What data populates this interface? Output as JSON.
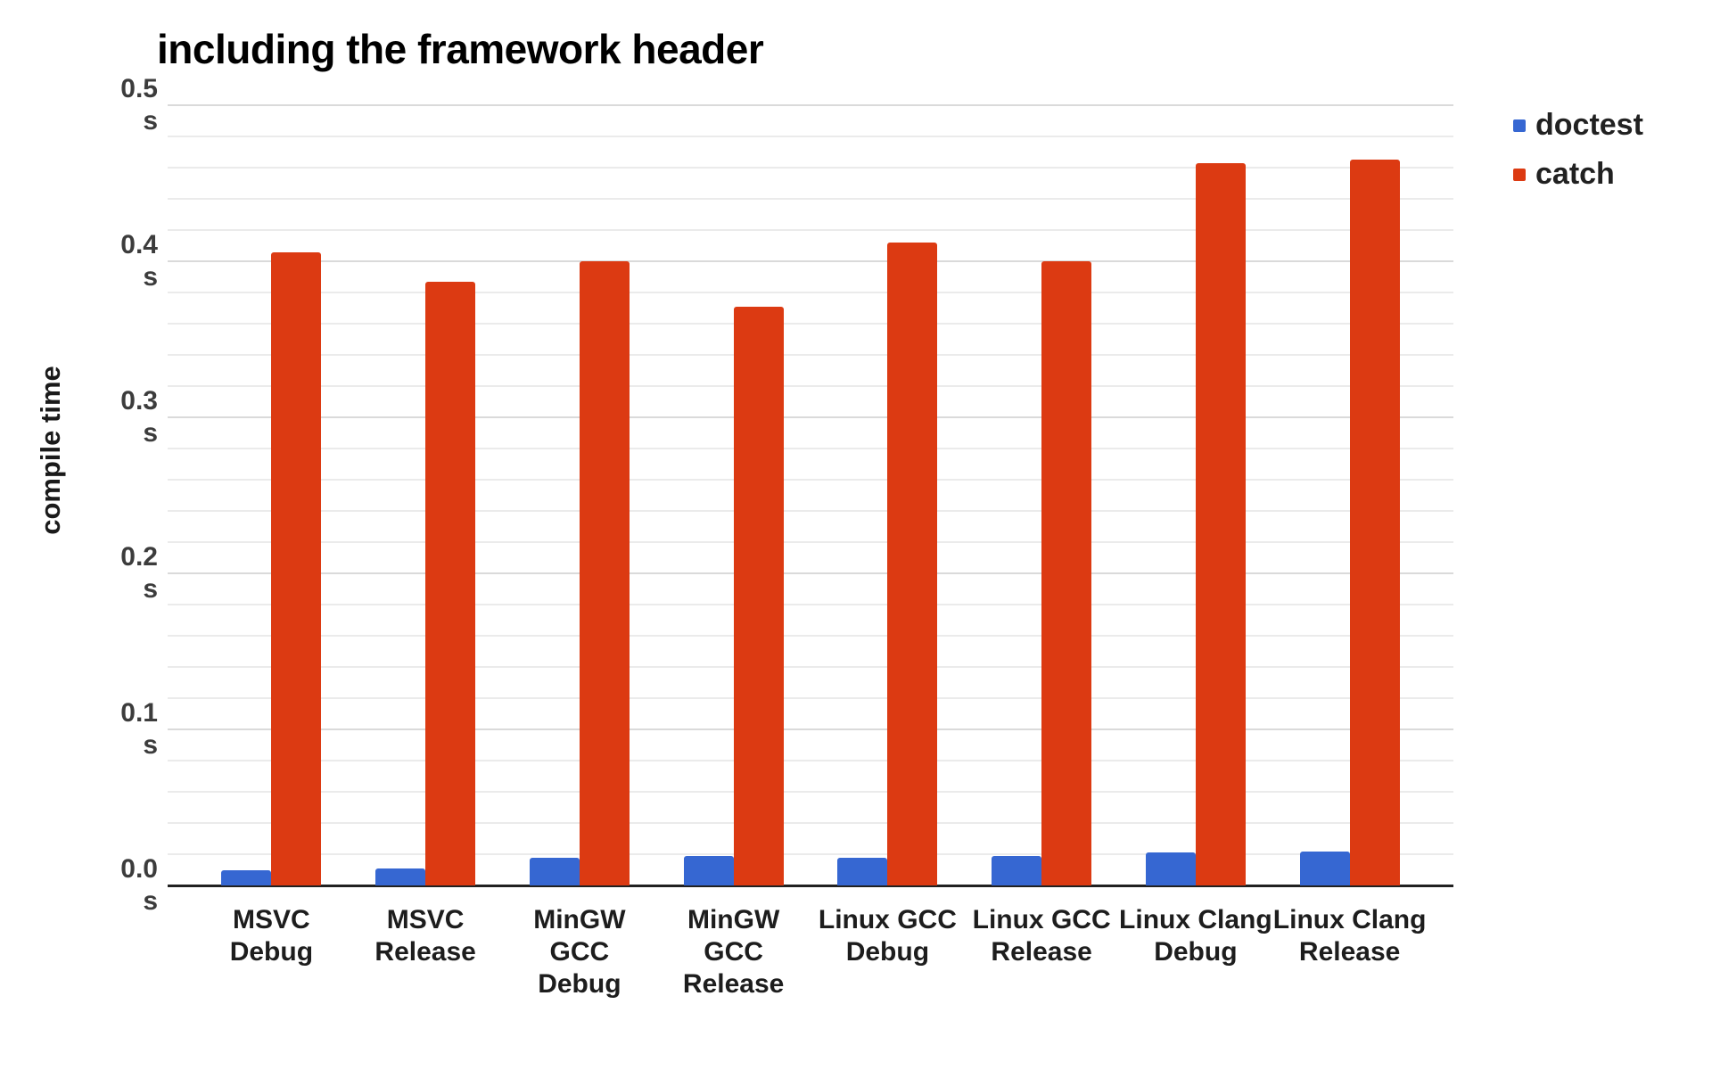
{
  "chart_data": {
    "type": "bar",
    "title": "including the framework header",
    "ylabel": "compile time",
    "xlabel": "",
    "unit": "s",
    "ylim": [
      0,
      0.5
    ],
    "ytick_values": [
      "0.0",
      "0.1",
      "0.2",
      "0.3",
      "0.4",
      "0.5"
    ],
    "ytick_unit": "s",
    "major_gridline_step": 0.1,
    "minor_gridline_step": 0.02,
    "grid": true,
    "legend_position": "top-right",
    "categories": [
      "MSVC Debug",
      "MSVC Release",
      "MinGW GCC Debug",
      "MinGW GCC Release",
      "Linux GCC Debug",
      "Linux GCC Release",
      "Linux Clang Debug",
      "Linux Clang Release"
    ],
    "series": [
      {
        "name": "doctest",
        "color": "#3667d2",
        "values": [
          0.01,
          0.011,
          0.018,
          0.019,
          0.018,
          0.019,
          0.021,
          0.022
        ]
      },
      {
        "name": "catch",
        "color": "#dc3a12",
        "values": [
          0.406,
          0.387,
          0.4,
          0.371,
          0.412,
          0.4,
          0.463,
          0.465
        ]
      }
    ]
  }
}
